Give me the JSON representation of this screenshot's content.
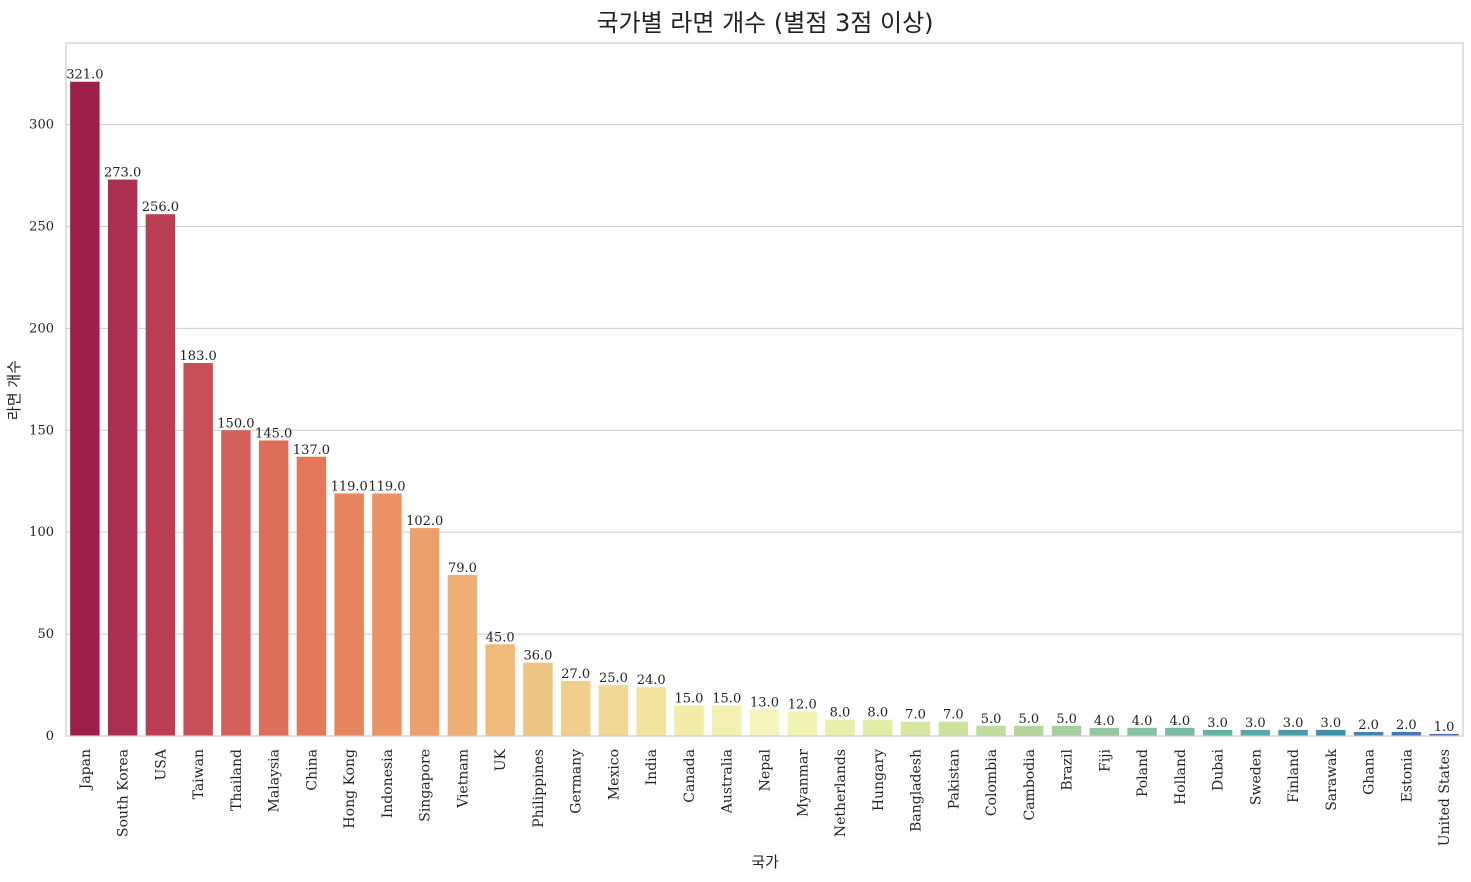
{
  "chart_data": {
    "type": "bar",
    "title": "국가별 라면 개수 (별점 3점 이상)",
    "xlabel": "국가",
    "ylabel": "라면 개수",
    "ylim": [
      0,
      340
    ],
    "yticks": [
      0,
      50,
      100,
      150,
      200,
      250,
      300
    ],
    "grid": true,
    "categories": [
      "Japan",
      "South Korea",
      "USA",
      "Taiwan",
      "Thailand",
      "Malaysia",
      "China",
      "Hong Kong",
      "Indonesia",
      "Singapore",
      "Vietnam",
      "UK",
      "Philippines",
      "Germany",
      "Mexico",
      "India",
      "Canada",
      "Australia",
      "Nepal",
      "Myanmar",
      "Netherlands",
      "Hungary",
      "Bangladesh",
      "Pakistan",
      "Colombia",
      "Cambodia",
      "Brazil",
      "Fiji",
      "Poland",
      "Holland",
      "Dubai",
      "Sweden",
      "Finland",
      "Sarawak",
      "Ghana",
      "Estonia",
      "United States"
    ],
    "values": [
      321,
      273,
      256,
      183,
      150,
      145,
      137,
      119,
      119,
      102,
      79,
      45,
      36,
      27,
      25,
      24,
      15,
      15,
      13,
      12,
      8,
      8,
      7,
      7,
      5,
      5,
      5,
      4,
      4,
      4,
      3,
      3,
      3,
      3,
      2,
      2,
      1
    ],
    "value_labels": [
      "321.0",
      "273.0",
      "256.0",
      "183.0",
      "150.0",
      "145.0",
      "137.0",
      "119.0",
      "119.0",
      "102.0",
      "79.0",
      "45.0",
      "36.0",
      "27.0",
      "25.0",
      "24.0",
      "15.0",
      "15.0",
      "13.0",
      "12.0",
      "8.0",
      "8.0",
      "7.0",
      "7.0",
      "5.0",
      "5.0",
      "5.0",
      "4.0",
      "4.0",
      "4.0",
      "3.0",
      "3.0",
      "3.0",
      "3.0",
      "2.0",
      "2.0",
      "1.0"
    ],
    "palette": "Spectral",
    "colors": [
      "#9e1f4a",
      "#ad2f4f",
      "#ba3d52",
      "#c84f57",
      "#d3605a",
      "#dc6e5a",
      "#e2775a",
      "#e7865e",
      "#ea9466",
      "#eca06b",
      "#eeae74",
      "#efba7a",
      "#efc584",
      "#f0cf8d",
      "#f1d995",
      "#f2e39e",
      "#f3eba8",
      "#f4f0b2",
      "#f5f5bb",
      "#f0f4b3",
      "#e9f0ac",
      "#e1eca5",
      "#d7e7a1",
      "#cce39e",
      "#bfdd9c",
      "#b1d79b",
      "#a4d19c",
      "#95ca9e",
      "#86c3a1",
      "#77bba4",
      "#69b1a7",
      "#5ba6aa",
      "#4e9aab",
      "#438dad",
      "#4182b0",
      "#4778b4",
      "#506cb3"
    ]
  }
}
